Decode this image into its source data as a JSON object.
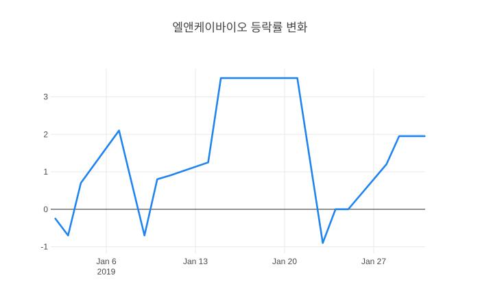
{
  "chart": {
    "title": "엘앤케이바이오 등락률 변화"
  },
  "colors": {
    "background": "#ffffff",
    "line": "#1f84f0",
    "grid": "#e9e9e9",
    "zero_line": "#444444",
    "tick_text": "#4c4c4c",
    "title_text": "#444444"
  },
  "chart_data": {
    "type": "line",
    "title": "엘앤케이바이오 등락률 변화",
    "xlabel": "",
    "ylabel": "",
    "legend": false,
    "grid": true,
    "x_axis": {
      "kind": "date",
      "month": "Jan",
      "year": "2019",
      "ticks": [
        {
          "day": 6,
          "label": "Jan 6",
          "sublabel": "2019"
        },
        {
          "day": 13,
          "label": "Jan 13"
        },
        {
          "day": 20,
          "label": "Jan 20"
        },
        {
          "day": 27,
          "label": "Jan 27"
        }
      ],
      "range_days": [
        1.64,
        31
      ]
    },
    "y_axis": {
      "ticks": [
        -1,
        0,
        1,
        2,
        3
      ],
      "range": [
        -1.17,
        3.76
      ],
      "zero_line": true
    },
    "series": [
      {
        "color": "#1f84f0",
        "points": [
          {
            "day": 2,
            "label": "Jan 2",
            "value": -0.25
          },
          {
            "day": 3,
            "label": "Jan 3",
            "value": -0.7
          },
          {
            "day": 4,
            "label": "Jan 4",
            "value": 0.7
          },
          {
            "day": 7,
            "label": "Jan 7",
            "value": 2.1
          },
          {
            "day": 8,
            "label": "Jan 8",
            "value": 0.7
          },
          {
            "day": 9,
            "label": "Jan 9",
            "value": -0.7
          },
          {
            "day": 10,
            "label": "Jan 10",
            "value": 0.8
          },
          {
            "day": 11,
            "label": "Jan 11",
            "value": 0.9
          },
          {
            "day": 14,
            "label": "Jan 14",
            "value": 1.25
          },
          {
            "day": 15,
            "label": "Jan 15",
            "value": 3.5
          },
          {
            "day": 16,
            "label": "Jan 16",
            "value": 3.5
          },
          {
            "day": 17,
            "label": "Jan 17",
            "value": 3.5
          },
          {
            "day": 18,
            "label": "Jan 18",
            "value": 3.5
          },
          {
            "day": 21,
            "label": "Jan 21",
            "value": 3.5
          },
          {
            "day": 22,
            "label": "Jan 22",
            "value": 1.3
          },
          {
            "day": 23,
            "label": "Jan 23",
            "value": -0.9
          },
          {
            "day": 24,
            "label": "Jan 24",
            "value": 0.0
          },
          {
            "day": 25,
            "label": "Jan 25",
            "value": 0.0
          },
          {
            "day": 28,
            "label": "Jan 28",
            "value": 1.2
          },
          {
            "day": 29,
            "label": "Jan 29",
            "value": 1.95
          },
          {
            "day": 30,
            "label": "Jan 30",
            "value": 1.95
          },
          {
            "day": 31,
            "label": "Jan 31",
            "value": 1.95
          }
        ]
      }
    ]
  }
}
